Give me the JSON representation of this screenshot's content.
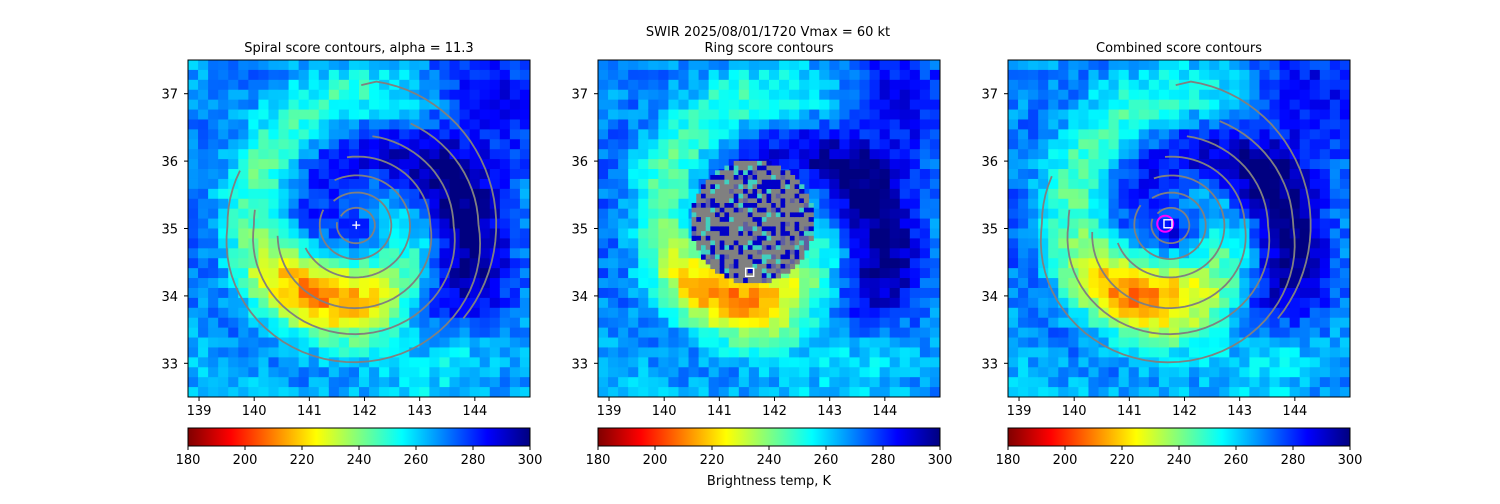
{
  "figure": {
    "suptitle_line1": "SWIR  2025/08/01/1720    Vmax = 60 kt",
    "colorbar_label": "Brightness temp, K"
  },
  "colormap": {
    "name": "jet_r",
    "stops": [
      "#800000",
      "#ff0000",
      "#ff8000",
      "#ffff00",
      "#80ff80",
      "#00ffff",
      "#0080ff",
      "#0000ff",
      "#000080"
    ]
  },
  "chart_data": [
    {
      "type": "heatmap",
      "panel": "spiral",
      "title": "Spiral score contours, alpha = 11.3",
      "xlabel": "",
      "ylabel": "",
      "xlim": [
        138.8,
        145.0
      ],
      "ylim": [
        32.5,
        37.5
      ],
      "x_ticks": [
        "139",
        "140",
        "141",
        "142",
        "143",
        "144"
      ],
      "y_ticks": [
        "33",
        "34",
        "35",
        "36",
        "37"
      ],
      "colorbar": {
        "vmin": 180,
        "vmax": 300,
        "ticks": [
          "180",
          "200",
          "220",
          "240",
          "260",
          "280",
          "300"
        ]
      },
      "storm_center": {
        "lon": 141.85,
        "lat": 35.05,
        "marker": "plus",
        "color": "#ffffff"
      },
      "contour_color": "#808080",
      "contour_kind": "spiral"
    },
    {
      "type": "heatmap",
      "panel": "ring",
      "title": "Ring score contours",
      "xlabel": "",
      "ylabel": "",
      "xlim": [
        138.8,
        145.0
      ],
      "ylim": [
        32.5,
        37.5
      ],
      "x_ticks": [
        "139",
        "140",
        "141",
        "142",
        "143",
        "144"
      ],
      "y_ticks": [
        "33",
        "34",
        "35",
        "36",
        "37"
      ],
      "colorbar": {
        "vmin": 180,
        "vmax": 300,
        "ticks": [
          "180",
          "200",
          "220",
          "240",
          "260",
          "280",
          "300"
        ]
      },
      "ring_region": {
        "lon": 141.6,
        "lat": 35.1,
        "radius_deg": 1.05
      },
      "best_point": {
        "lon": 141.55,
        "lat": 34.35,
        "marker": "square",
        "color": "#ffffff"
      },
      "contour_color": "#808080",
      "contour_kind": "ring"
    },
    {
      "type": "heatmap",
      "panel": "combined",
      "title": "Combined score contours",
      "xlabel": "",
      "ylabel": "",
      "xlim": [
        138.8,
        145.0
      ],
      "ylim": [
        32.5,
        37.5
      ],
      "x_ticks": [
        "139",
        "140",
        "141",
        "142",
        "143",
        "144"
      ],
      "y_ticks": [
        "33",
        "34",
        "35",
        "36",
        "37"
      ],
      "colorbar": {
        "vmin": 180,
        "vmax": 300,
        "ticks": [
          "180",
          "200",
          "220",
          "240",
          "260",
          "280",
          "300"
        ]
      },
      "best_point": {
        "lon": 141.7,
        "lat": 35.07,
        "marker": "square",
        "color": "#ffffff"
      },
      "best_circle": {
        "lon": 141.65,
        "lat": 35.07,
        "color": "#ff00ff"
      },
      "storm_center": {
        "lon": 141.85,
        "lat": 35.05,
        "marker": "plus",
        "color": "#ffffff"
      },
      "contour_color": "#808080",
      "contour_kind": "combined"
    }
  ]
}
